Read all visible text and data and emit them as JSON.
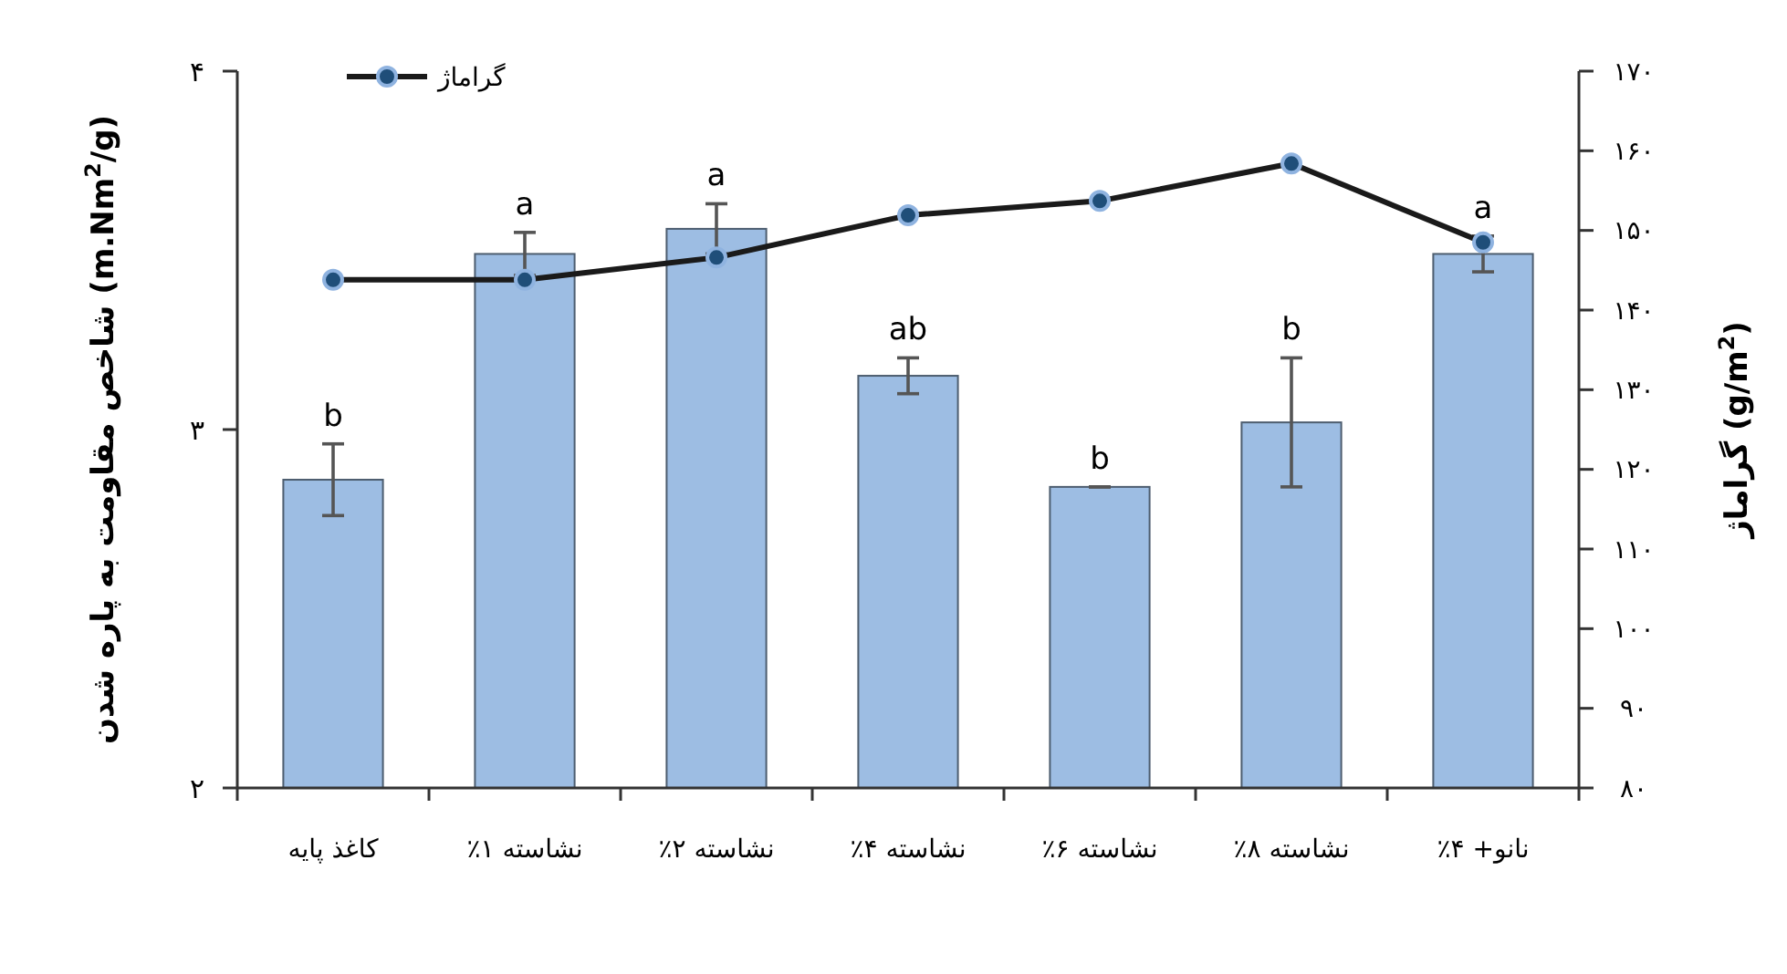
{
  "chart_data": {
    "type": "bar",
    "categories": [
      "کاغذ پایه",
      "نشاسته ۱٪",
      "نشاسته ۲٪",
      "نشاسته ۴٪",
      "نشاسته ۶٪",
      "نشاسته ۸٪",
      "نانو+ ۴٪"
    ],
    "series": [
      {
        "color": "#9dbde3",
        "values": [
          2.86,
          3.49,
          3.56,
          3.15,
          2.84,
          3.02,
          3.49
        ],
        "errors": [
          0.1,
          0.06,
          0.07,
          0.05,
          0,
          0.18,
          0.05
        ]
      },
      {
        "type": "line",
        "name": "گراماژ",
        "color": "#1a1a1a",
        "axis": "y2",
        "values": [
          143.8,
          143.8,
          146.6,
          151.9,
          153.7,
          158.4,
          148.5
        ]
      }
    ],
    "ylabel": "شاخص مقاومت به پاره شدن (m.Nm$^{2}$/g)",
    "y2label": "گراماژ (g/m$^{2}$)",
    "ylim": [
      2,
      4
    ],
    "yticks": [
      {
        "value": 2,
        "label": "۲"
      },
      {
        "value": 3,
        "label": "۳"
      },
      {
        "value": 4,
        "label": "۴"
      }
    ],
    "y2lim": [
      80,
      170
    ],
    "y2ticks": [
      {
        "value": 80,
        "label": "۸۰"
      },
      {
        "value": 90,
        "label": "۹۰"
      },
      {
        "value": 100,
        "label": "۱۰۰"
      },
      {
        "value": 110,
        "label": "۱۱۰"
      },
      {
        "value": 120,
        "label": "۱۲۰"
      },
      {
        "value": 130,
        "label": "۱۳۰"
      },
      {
        "value": 140,
        "label": "۱۴۰"
      },
      {
        "value": 150,
        "label": "۱۵۰"
      },
      {
        "value": 160,
        "label": "۱۶۰"
      },
      {
        "value": 170,
        "label": "۱۷۰"
      }
    ],
    "annotations": [
      {
        "text": "b",
        "x": "کاغذ پایه",
        "y": 2.96
      },
      {
        "text": "a",
        "x": "نشاسته ۱٪",
        "y": 3.55
      },
      {
        "text": "a",
        "x": "نشاسته ۲٪",
        "y": 3.63
      },
      {
        "text": "ab",
        "x": "نشاسته ۴٪",
        "y": 3.2
      },
      {
        "text": "b",
        "x": "نشاسته ۶٪",
        "y": 2.84
      },
      {
        "text": "b",
        "x": "نشاسته ۸٪",
        "y": 3.2
      },
      {
        "text": "a",
        "x": "نانو+ ۴٪",
        "y": 3.54
      }
    ],
    "legend": "top left",
    "marker": "circle",
    "grid": false
  }
}
